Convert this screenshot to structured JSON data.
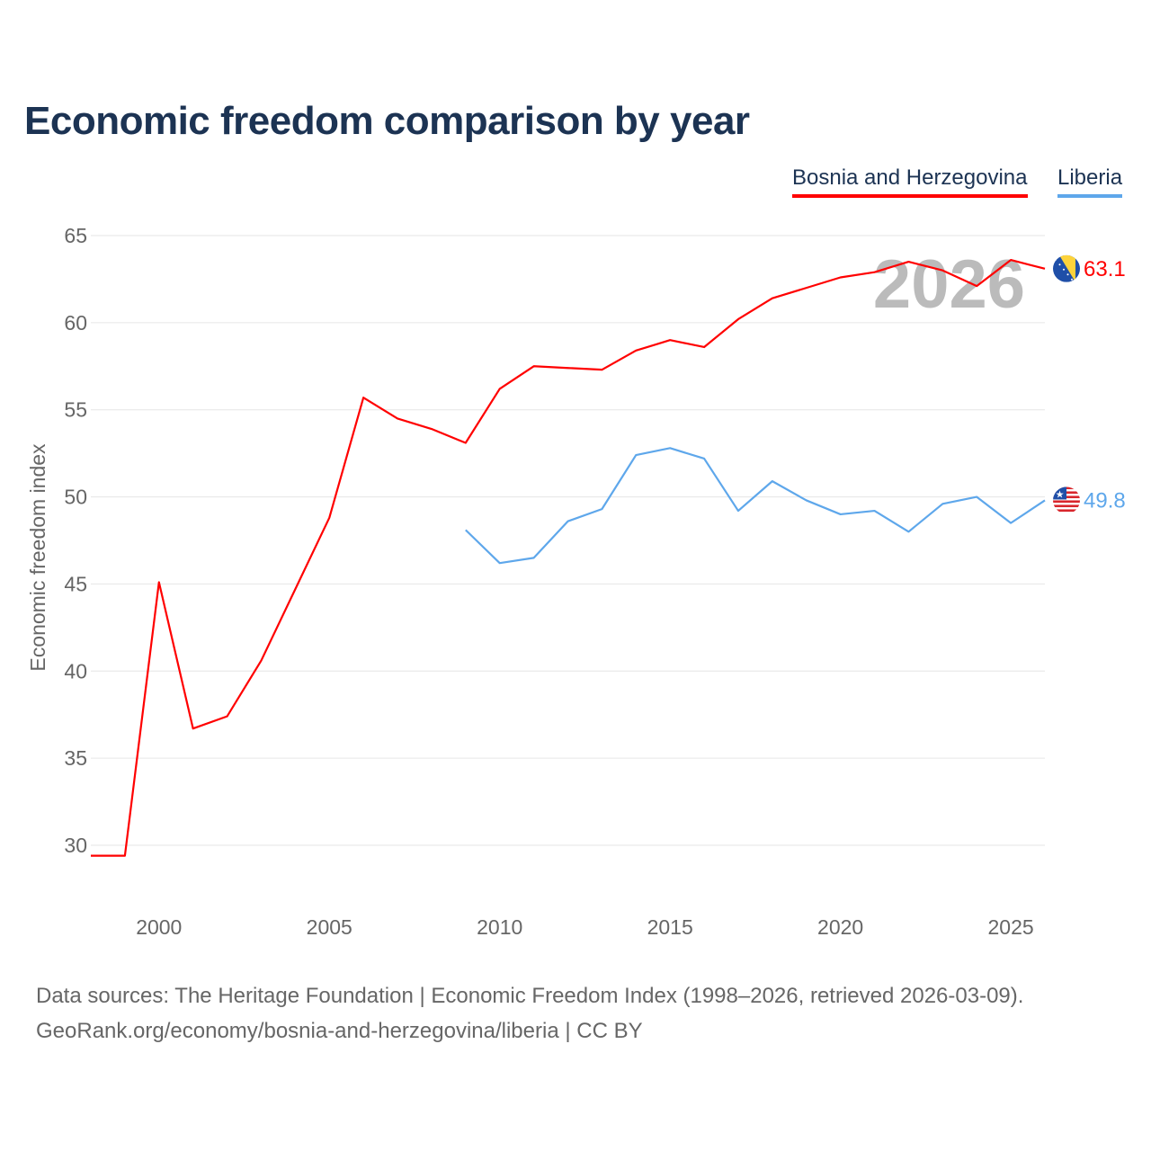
{
  "title": "Economic freedom comparison by year",
  "legend": [
    {
      "label": "Bosnia and Herzegovina",
      "color": "#ff0000"
    },
    {
      "label": "Liberia",
      "color": "#5ea7eb"
    }
  ],
  "year_watermark": "2026",
  "footer": {
    "line1": "Data sources: The Heritage Foundation | Economic Freedom Index (1998–2026, retrieved 2026-03-09).",
    "line2": "GeoRank.org/economy/bosnia-and-herzegovina/liberia | CC BY"
  },
  "chart_data": {
    "type": "line",
    "title": "Economic freedom comparison by year",
    "xlabel": "",
    "ylabel": "Economic freedom index",
    "xlim": [
      1998,
      2026
    ],
    "ylim": [
      27,
      67
    ],
    "x_ticks": [
      "2000",
      "2005",
      "2010",
      "2015",
      "2020",
      "2025"
    ],
    "y_ticks": [
      "30",
      "35",
      "40",
      "45",
      "50",
      "55",
      "60",
      "65"
    ],
    "grid": true,
    "legend_position": "top-right",
    "series": [
      {
        "name": "Bosnia and Herzegovina",
        "color": "#ff0000",
        "end_label": "63.1",
        "flag_icon": "bosnia-flag-icon",
        "x": [
          1998,
          1999,
          2000,
          2001,
          2002,
          2003,
          2004,
          2005,
          2006,
          2007,
          2008,
          2009,
          2010,
          2011,
          2012,
          2013,
          2014,
          2015,
          2016,
          2017,
          2018,
          2019,
          2020,
          2021,
          2022,
          2023,
          2024,
          2025,
          2026
        ],
        "values": [
          29.4,
          29.4,
          45.1,
          36.7,
          37.4,
          40.6,
          44.7,
          48.8,
          55.7,
          54.5,
          53.9,
          53.1,
          56.2,
          57.5,
          57.4,
          57.3,
          58.4,
          59.0,
          58.6,
          60.2,
          61.4,
          62.0,
          62.6,
          62.9,
          63.5,
          63.0,
          62.1,
          63.6,
          63.1
        ]
      },
      {
        "name": "Liberia",
        "color": "#5ea7eb",
        "end_label": "49.8",
        "flag_icon": "liberia-flag-icon",
        "x": [
          2009,
          2010,
          2011,
          2012,
          2013,
          2014,
          2015,
          2016,
          2017,
          2018,
          2019,
          2020,
          2021,
          2022,
          2023,
          2024,
          2025,
          2026
        ],
        "values": [
          48.1,
          46.2,
          46.5,
          48.6,
          49.3,
          52.4,
          52.8,
          52.2,
          49.2,
          50.9,
          49.8,
          49.0,
          49.2,
          48.0,
          49.6,
          50.0,
          48.5,
          49.8
        ]
      }
    ]
  }
}
